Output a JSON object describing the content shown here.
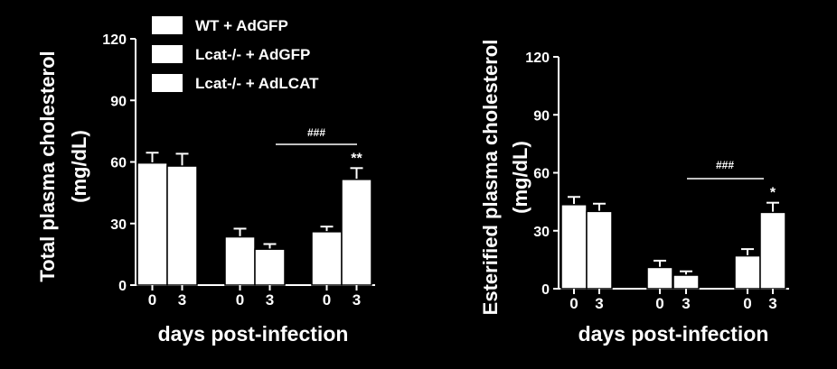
{
  "chart_data": [
    {
      "type": "bar",
      "ylabel": [
        "Total plasma cholesterol",
        "(mg/dL)"
      ],
      "xlabel": "days post-infection",
      "categories": [
        "0",
        "3",
        "0",
        "3",
        "0",
        "3"
      ],
      "values": [
        59.5,
        58,
        23.5,
        17.5,
        26,
        51.5
      ],
      "errors": [
        5,
        6,
        4,
        2.5,
        2.5,
        5.5
      ],
      "color": "#ffffff",
      "ylim": [
        0,
        120
      ],
      "yticks": [
        0,
        30,
        60,
        90,
        120
      ],
      "legend": [
        "WT + AdGFP",
        "Lcat-/- + AdGFP",
        "Lcat-/- + AdLCAT"
      ],
      "annotations": [
        "###",
        "**"
      ]
    },
    {
      "type": "bar",
      "ylabel": [
        "Esterified plasma cholesterol",
        "(mg/dL)"
      ],
      "xlabel": "days post-infection",
      "categories": [
        "0",
        "3",
        "0",
        "3",
        "0",
        "3"
      ],
      "values": [
        43.5,
        40,
        11,
        7,
        17,
        39.5
      ],
      "errors": [
        4,
        4,
        3.5,
        2,
        3.5,
        5
      ],
      "color": "#ffffff",
      "ylim": [
        0,
        120
      ],
      "yticks": [
        0,
        30,
        60,
        90,
        120
      ],
      "annotations": [
        "###",
        "*"
      ]
    }
  ]
}
